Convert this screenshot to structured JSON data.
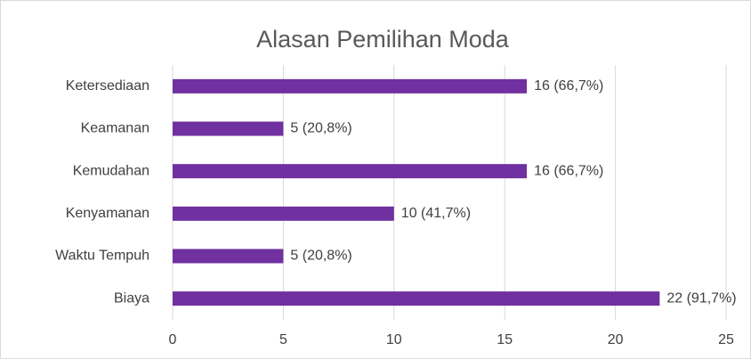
{
  "chart_data": {
    "type": "bar",
    "orientation": "horizontal",
    "title": "Alasan Pemilihan Moda",
    "categories": [
      "Ketersediaan",
      "Keamanan",
      "Kemudahan",
      "Kenyamanan",
      "Waktu Tempuh",
      "Biaya"
    ],
    "values": [
      16,
      5,
      16,
      10,
      5,
      22
    ],
    "value_labels": [
      "16 (66,7%)",
      "5 (20,8%)",
      "16 (66,7%)",
      "10 (41,7%)",
      "5 (20,8%)",
      "22 (91,7%)"
    ],
    "color": "#7030a0",
    "xlim": [
      0,
      25
    ],
    "xticks": [
      0,
      5,
      10,
      15,
      20,
      25
    ],
    "grid": true
  }
}
